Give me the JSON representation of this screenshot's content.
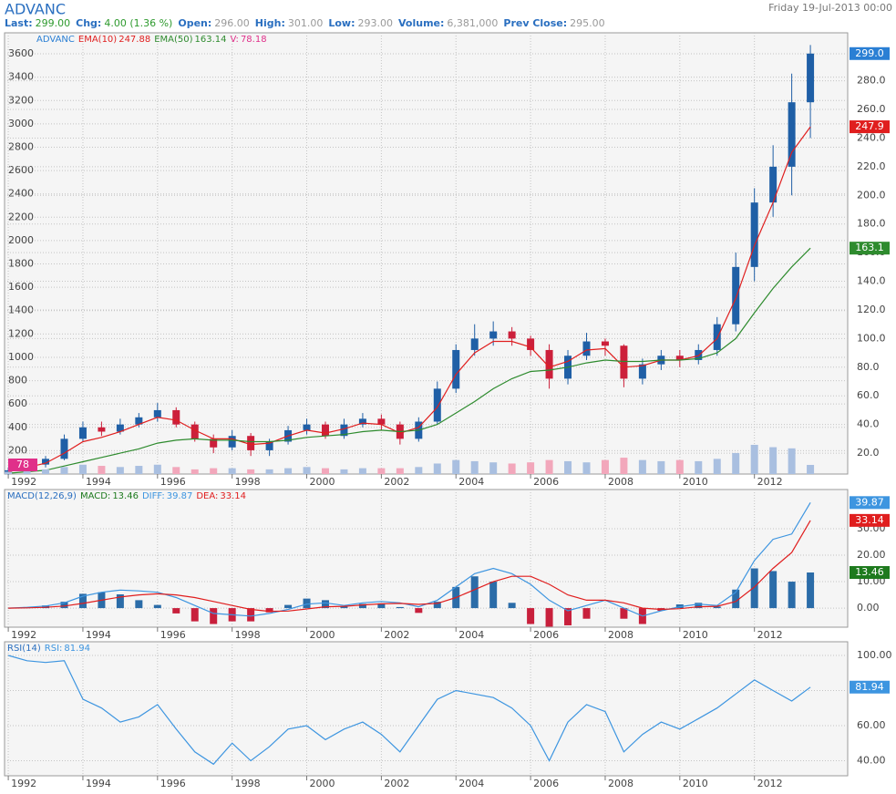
{
  "header": {
    "title": "ADVANC",
    "date": "Friday 19-Jul-2013 00:00",
    "stats": [
      {
        "label": "Last:",
        "value": "299.00",
        "color": "#2e9a2e"
      },
      {
        "label": "Chg:",
        "value": "4.00 (1.36 %)",
        "color": "#2e9a2e"
      },
      {
        "label": "Open:",
        "value": "296.00",
        "color": "#999999"
      },
      {
        "label": "High:",
        "value": "301.00",
        "color": "#999999"
      },
      {
        "label": "Low:",
        "value": "293.00",
        "color": "#999999"
      },
      {
        "label": "Volume:",
        "value": "6,381,000",
        "color": "#999999"
      },
      {
        "label": "Prev Close:",
        "value": "295.00",
        "color": "#999999"
      }
    ]
  },
  "chart_data": [
    {
      "type": "candlestick",
      "grid": true,
      "y_axis_side": "left",
      "x": [
        1992,
        1992.5,
        1993,
        1993.5,
        1994,
        1994.5,
        1995,
        1995.5,
        1996,
        1996.5,
        1997,
        1997.5,
        1998,
        1998.5,
        1999,
        1999.5,
        2000,
        2000.5,
        2001,
        2001.5,
        2002,
        2002.5,
        2003,
        2003.5,
        2004,
        2004.5,
        2005,
        2005.5,
        2006,
        2006.5,
        2007,
        2007.5,
        2008,
        2008.5,
        2009,
        2009.5,
        2010,
        2010.5,
        2011,
        2011.5,
        2012,
        2012.5,
        2013,
        2013.5
      ],
      "xlim": [
        1991.9,
        2014.5
      ],
      "xticks": [
        1992,
        1994,
        1996,
        1998,
        2000,
        2002,
        2004,
        2006,
        2008,
        2010,
        2012
      ],
      "ylim": [
        0,
        3780
      ],
      "yticks": [
        200,
        400,
        600,
        800,
        1000,
        1200,
        1400,
        1600,
        1800,
        2000,
        2200,
        2400,
        2600,
        2800,
        3000,
        3200,
        3400,
        3600
      ],
      "y2lim": [
        5.4,
        313.5
      ],
      "y2ticks": [
        {
          "value": 20,
          "label": "20.0"
        },
        {
          "value": 40,
          "label": "40.0"
        },
        {
          "value": 60,
          "label": "60.0"
        },
        {
          "value": 80,
          "label": "80.0"
        },
        {
          "value": 100,
          "label": "100.0"
        },
        {
          "value": 120,
          "label": "120.0"
        },
        {
          "value": 140,
          "label": "140.0"
        },
        {
          "value": 160,
          "label": "160.0"
        },
        {
          "value": 180,
          "label": "180.0"
        },
        {
          "value": 200,
          "label": "200.0"
        },
        {
          "value": 220,
          "label": "220.0"
        },
        {
          "value": 240,
          "label": "240.0"
        },
        {
          "value": 260,
          "label": "260.0"
        },
        {
          "value": 280,
          "label": "280.0"
        }
      ],
      "series": [
        {
          "name": "ADVANC",
          "type": "candlestick",
          "axis": "y2",
          "color": "#1f5fa6",
          "down_color": "#cc1f3a",
          "tag_color": "#2a7fd4",
          "tag_label": "299.0",
          "open": [
            6,
            8,
            12,
            16,
            30,
            38,
            35,
            40,
            45,
            50,
            40,
            30,
            24,
            32,
            22,
            28,
            36,
            40,
            32,
            40,
            44,
            40,
            30,
            42,
            65,
            92,
            100,
            105,
            100,
            92,
            72,
            88,
            98,
            95,
            72,
            82,
            88,
            85,
            92,
            110,
            150,
            195,
            220,
            265
          ],
          "high": [
            10,
            14,
            18,
            33,
            42,
            42,
            44,
            48,
            55,
            52,
            42,
            33,
            36,
            34,
            30,
            39,
            44,
            42,
            44,
            48,
            47,
            42,
            45,
            70,
            96,
            110,
            112,
            108,
            102,
            96,
            92,
            104,
            100,
            96,
            86,
            92,
            92,
            96,
            115,
            160,
            205,
            235,
            285,
            305
          ],
          "low": [
            5,
            7,
            10,
            15,
            28,
            32,
            33,
            38,
            42,
            38,
            28,
            20,
            22,
            18,
            18,
            26,
            33,
            30,
            30,
            38,
            36,
            26,
            28,
            40,
            62,
            88,
            95,
            95,
            88,
            65,
            68,
            85,
            88,
            66,
            68,
            78,
            80,
            82,
            88,
            105,
            140,
            185,
            200,
            240
          ],
          "close": [
            8,
            12,
            16,
            30,
            38,
            35,
            40,
            45,
            50,
            40,
            30,
            24,
            32,
            22,
            28,
            36,
            40,
            32,
            40,
            44,
            40,
            30,
            42,
            65,
            92,
            100,
            105,
            100,
            92,
            72,
            88,
            98,
            95,
            72,
            82,
            88,
            85,
            92,
            110,
            150,
            195,
            220,
            265,
            299
          ]
        },
        {
          "name": "EMA(10)",
          "type": "line",
          "axis": "y2",
          "color": "#e01e1e",
          "tag_label": "247.9",
          "values": [
            7,
            10,
            13,
            20,
            28,
            31,
            35,
            40,
            45,
            43,
            36,
            30,
            30,
            26,
            27,
            32,
            36,
            34,
            37,
            41,
            40,
            34,
            38,
            52,
            75,
            90,
            98,
            98,
            94,
            80,
            84,
            92,
            93,
            80,
            81,
            85,
            85,
            88,
            100,
            128,
            165,
            195,
            230,
            247.88
          ]
        },
        {
          "name": "EMA(50)",
          "type": "line",
          "axis": "y2",
          "color": "#2e8b2e",
          "tag_label": "163.1",
          "values": [
            6,
            7,
            8,
            11,
            14,
            17,
            20,
            23,
            27,
            29,
            30,
            29,
            29,
            28,
            28,
            29,
            31,
            32,
            33,
            35,
            36,
            35,
            36,
            40,
            48,
            56,
            65,
            72,
            77,
            78,
            80,
            83,
            85,
            84,
            84,
            85,
            85,
            86,
            90,
            100,
            118,
            135,
            150,
            163.14
          ]
        },
        {
          "name": "V:",
          "type": "bar",
          "axis": "y",
          "color": "#a9bfe0",
          "down_color": "#f2a7bb",
          "tag_color": "#e0308a",
          "tag_label": "78",
          "tag_side": "left",
          "values": [
            20,
            30,
            40,
            60,
            80,
            70,
            60,
            70,
            80,
            60,
            40,
            50,
            50,
            40,
            40,
            50,
            60,
            50,
            40,
            50,
            50,
            50,
            60,
            90,
            120,
            110,
            100,
            90,
            100,
            120,
            110,
            100,
            120,
            140,
            120,
            110,
            120,
            110,
            130,
            180,
            250,
            230,
            220,
            78.18
          ]
        }
      ]
    },
    {
      "type": "macd",
      "title": "MACD(12,26,9)",
      "grid": true,
      "y_axis_side": "right",
      "x": [
        1992,
        1992.5,
        1993,
        1993.5,
        1994,
        1994.5,
        1995,
        1995.5,
        1996,
        1996.5,
        1997,
        1997.5,
        1998,
        1998.5,
        1999,
        1999.5,
        2000,
        2000.5,
        2001,
        2001.5,
        2002,
        2002.5,
        2003,
        2003.5,
        2004,
        2004.5,
        2005,
        2005.5,
        2006,
        2006.5,
        2007,
        2007.5,
        2008,
        2008.5,
        2009,
        2009.5,
        2010,
        2010.5,
        2011,
        2011.5,
        2012,
        2012.5,
        2013,
        2013.5
      ],
      "xlim": [
        1991.9,
        2014.5
      ],
      "xticks": [
        1992,
        1994,
        1996,
        1998,
        2000,
        2002,
        2004,
        2006,
        2008,
        2010,
        2012
      ],
      "ylim": [
        -7.2,
        44.8
      ],
      "yticks": [
        {
          "value": 0,
          "label": "0.00"
        },
        {
          "value": 10,
          "label": "10.00"
        },
        {
          "value": 20,
          "label": "20.00"
        },
        {
          "value": 30,
          "label": "30.00"
        }
      ],
      "series": [
        {
          "name": "MACD:",
          "type": "bar",
          "color": "#2b6ca8",
          "down_color": "#c8203c",
          "tag_color": "#1e7a1e",
          "values": [
            0,
            0.4,
            1,
            2.4,
            5.4,
            6,
            5.2,
            3,
            1.2,
            -2,
            -5,
            -6,
            -5,
            -5,
            -1.6,
            1.2,
            3.6,
            3,
            0.6,
            1.6,
            1.8,
            0.4,
            -1.8,
            2.4,
            8,
            12,
            10,
            2,
            -6,
            -7,
            -6.5,
            -4,
            0,
            -4,
            -6,
            -1,
            1.4,
            2,
            0.6,
            7,
            15,
            14,
            10,
            13.46
          ]
        },
        {
          "name": "DIFF:",
          "type": "line",
          "color": "#3d95e0",
          "values": [
            0,
            0.3,
            0.8,
            2,
            4.5,
            6,
            6.8,
            6.5,
            6,
            4,
            1,
            -2,
            -2.5,
            -3,
            -2,
            -0.5,
            1.5,
            2,
            1,
            2,
            2.5,
            2,
            0.5,
            3,
            8,
            13,
            15,
            13,
            9,
            3,
            -1,
            1,
            3,
            0,
            -3,
            -1,
            0.5,
            1.5,
            1,
            6,
            18,
            26,
            28,
            39.87
          ]
        },
        {
          "name": "DEA:",
          "type": "line",
          "color": "#e01e1e",
          "values": [
            0,
            0.1,
            0.3,
            0.8,
            1.8,
            3,
            4.2,
            5,
            5.4,
            5,
            4,
            2.5,
            1,
            -0.5,
            -1.2,
            -1.1,
            -0.3,
            0.5,
            0.7,
            1.2,
            1.6,
            1.8,
            1.4,
            1.8,
            4,
            7,
            10,
            12,
            12,
            9,
            5,
            3,
            3,
            2,
            0,
            -0.5,
            -0.2,
            0.5,
            0.7,
            2.5,
            8,
            15,
            21,
            33.14
          ]
        }
      ]
    },
    {
      "type": "rsi",
      "title": "RSI(14)",
      "grid": true,
      "y_axis_side": "right",
      "x": [
        1992,
        1992.5,
        1993,
        1993.5,
        1994,
        1994.5,
        1995,
        1995.5,
        1996,
        1996.5,
        1997,
        1997.5,
        1998,
        1998.5,
        1999,
        1999.5,
        2000,
        2000.5,
        2001,
        2001.5,
        2002,
        2002.5,
        2003,
        2003.5,
        2004,
        2004.5,
        2005,
        2005.5,
        2006,
        2006.5,
        2007,
        2007.5,
        2008,
        2008.5,
        2009,
        2009.5,
        2010,
        2010.5,
        2011,
        2011.5,
        2012,
        2012.5,
        2013,
        2013.5
      ],
      "xlim": [
        1991.9,
        2014.5
      ],
      "xticks": [
        1992,
        1994,
        1996,
        1998,
        2000,
        2002,
        2004,
        2006,
        2008,
        2010,
        2012
      ],
      "ylim": [
        31.4,
        107.8
      ],
      "yticks": [
        {
          "value": 40,
          "label": "40.00"
        },
        {
          "value": 60,
          "label": "60.00"
        },
        {
          "value": 80,
          "label": "80.00"
        },
        {
          "value": 100,
          "label": "100.00"
        }
      ],
      "series": [
        {
          "name": "RSI:",
          "type": "line",
          "color": "#3d95e0",
          "values": [
            100,
            97,
            96,
            97,
            75,
            70,
            62,
            65,
            72,
            58,
            45,
            38,
            50,
            40,
            48,
            58,
            60,
            52,
            58,
            62,
            55,
            45,
            60,
            75,
            80,
            78,
            76,
            70,
            60,
            40,
            62,
            72,
            68,
            45,
            55,
            62,
            58,
            64,
            70,
            78,
            86,
            80,
            74,
            81.94
          ]
        }
      ]
    }
  ]
}
